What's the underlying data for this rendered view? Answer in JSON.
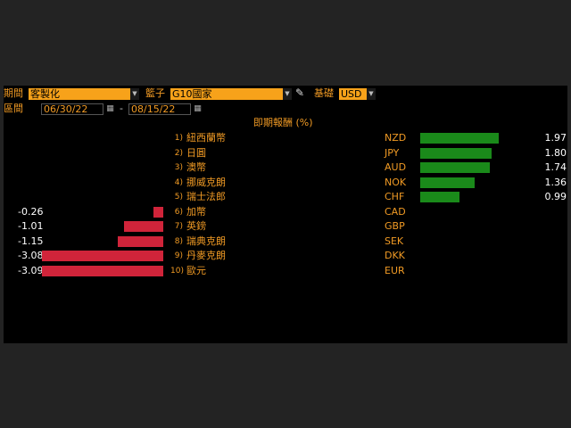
{
  "controls": {
    "period_label": "期間",
    "period_value": "客製化",
    "basket_label": "籃子",
    "basket_value": "G10國家",
    "base_label": "基礎",
    "base_value": "USD",
    "range_label": "區間",
    "start_date": "06/30/22",
    "date_separator": "-",
    "end_date": "08/15/22"
  },
  "chart_title": "即期報酬 (%)",
  "colors": {
    "positive": "#1a8a1a",
    "negative": "#d0243a",
    "accent": "#f09a24"
  },
  "chart_data": {
    "type": "bar",
    "title": "即期報酬 (%)",
    "rows": [
      {
        "rank": "1)",
        "name": "紐西蘭幣",
        "code": "NZD",
        "value": 1.97,
        "label": "1.97"
      },
      {
        "rank": "2)",
        "name": "日圓",
        "code": "JPY",
        "value": 1.8,
        "label": "1.80"
      },
      {
        "rank": "3)",
        "name": "澳幣",
        "code": "AUD",
        "value": 1.74,
        "label": "1.74"
      },
      {
        "rank": "4)",
        "name": "挪威克朗",
        "code": "NOK",
        "value": 1.36,
        "label": "1.36"
      },
      {
        "rank": "5)",
        "name": "瑞士法郎",
        "code": "CHF",
        "value": 0.99,
        "label": "0.99"
      },
      {
        "rank": "6)",
        "name": "加幣",
        "code": "CAD",
        "value": -0.26,
        "label": "-0.26"
      },
      {
        "rank": "7)",
        "name": "英鎊",
        "code": "GBP",
        "value": -1.01,
        "label": "-1.01"
      },
      {
        "rank": "8)",
        "name": "瑞典克朗",
        "code": "SEK",
        "value": -1.15,
        "label": "-1.15"
      },
      {
        "rank": "9)",
        "name": "丹麥克朗",
        "code": "DKK",
        "value": -3.08,
        "label": "-3.08"
      },
      {
        "rank": "10)",
        "name": "歐元",
        "code": "EUR",
        "value": -3.09,
        "label": "-3.09"
      }
    ]
  }
}
